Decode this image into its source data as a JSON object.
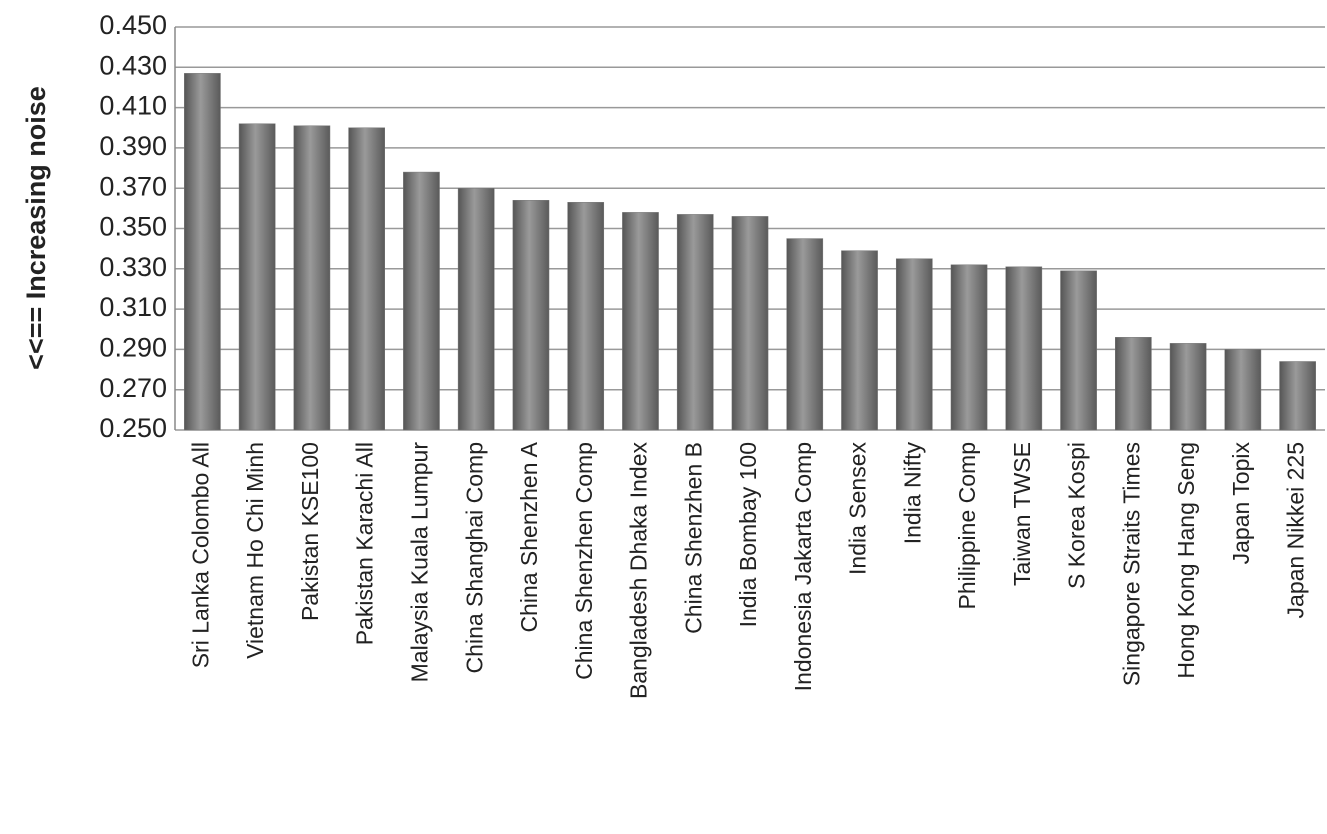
{
  "chart_data": {
    "type": "bar",
    "y_label": "<<== Increasing noise",
    "categories": [
      "Sri Lanka Colombo All",
      "Vietnam Ho Chi Minh",
      "Pakistan KSE100",
      "Pakistan Karachi All",
      "Malaysia Kuala Lumpur",
      "China Shanghai Comp",
      "China Shenzhen A",
      "China Shenzhen Comp",
      "Bangladesh Dhaka Index",
      "China Shenzhen B",
      "India Bombay 100",
      "Indonesia Jakarta Comp",
      "India Sensex",
      "India Nifty",
      "Philippine Comp",
      "Taiwan TWSE",
      "S Korea Kospi",
      "Singapore Straits Times",
      "Hong Kong Hang Seng",
      "Japan Topix",
      "Japan Nikkei 225"
    ],
    "values": [
      0.427,
      0.402,
      0.401,
      0.4,
      0.378,
      0.37,
      0.364,
      0.363,
      0.358,
      0.357,
      0.356,
      0.345,
      0.339,
      0.335,
      0.332,
      0.331,
      0.329,
      0.296,
      0.293,
      0.29,
      0.284
    ],
    "color": "#777777",
    "ylim": [
      0.25,
      0.45
    ],
    "yticks": [
      {
        "value": 0.25,
        "label": "0.250"
      },
      {
        "value": 0.27,
        "label": "0.270"
      },
      {
        "value": 0.29,
        "label": "0.290"
      },
      {
        "value": 0.31,
        "label": "0.310"
      },
      {
        "value": 0.33,
        "label": "0.330"
      },
      {
        "value": 0.35,
        "label": "0.350"
      },
      {
        "value": 0.37,
        "label": "0.370"
      },
      {
        "value": 0.39,
        "label": "0.390"
      },
      {
        "value": 0.41,
        "label": "0.410"
      },
      {
        "value": 0.43,
        "label": "0.430"
      },
      {
        "value": 0.45,
        "label": "0.450"
      }
    ],
    "grid": true
  }
}
